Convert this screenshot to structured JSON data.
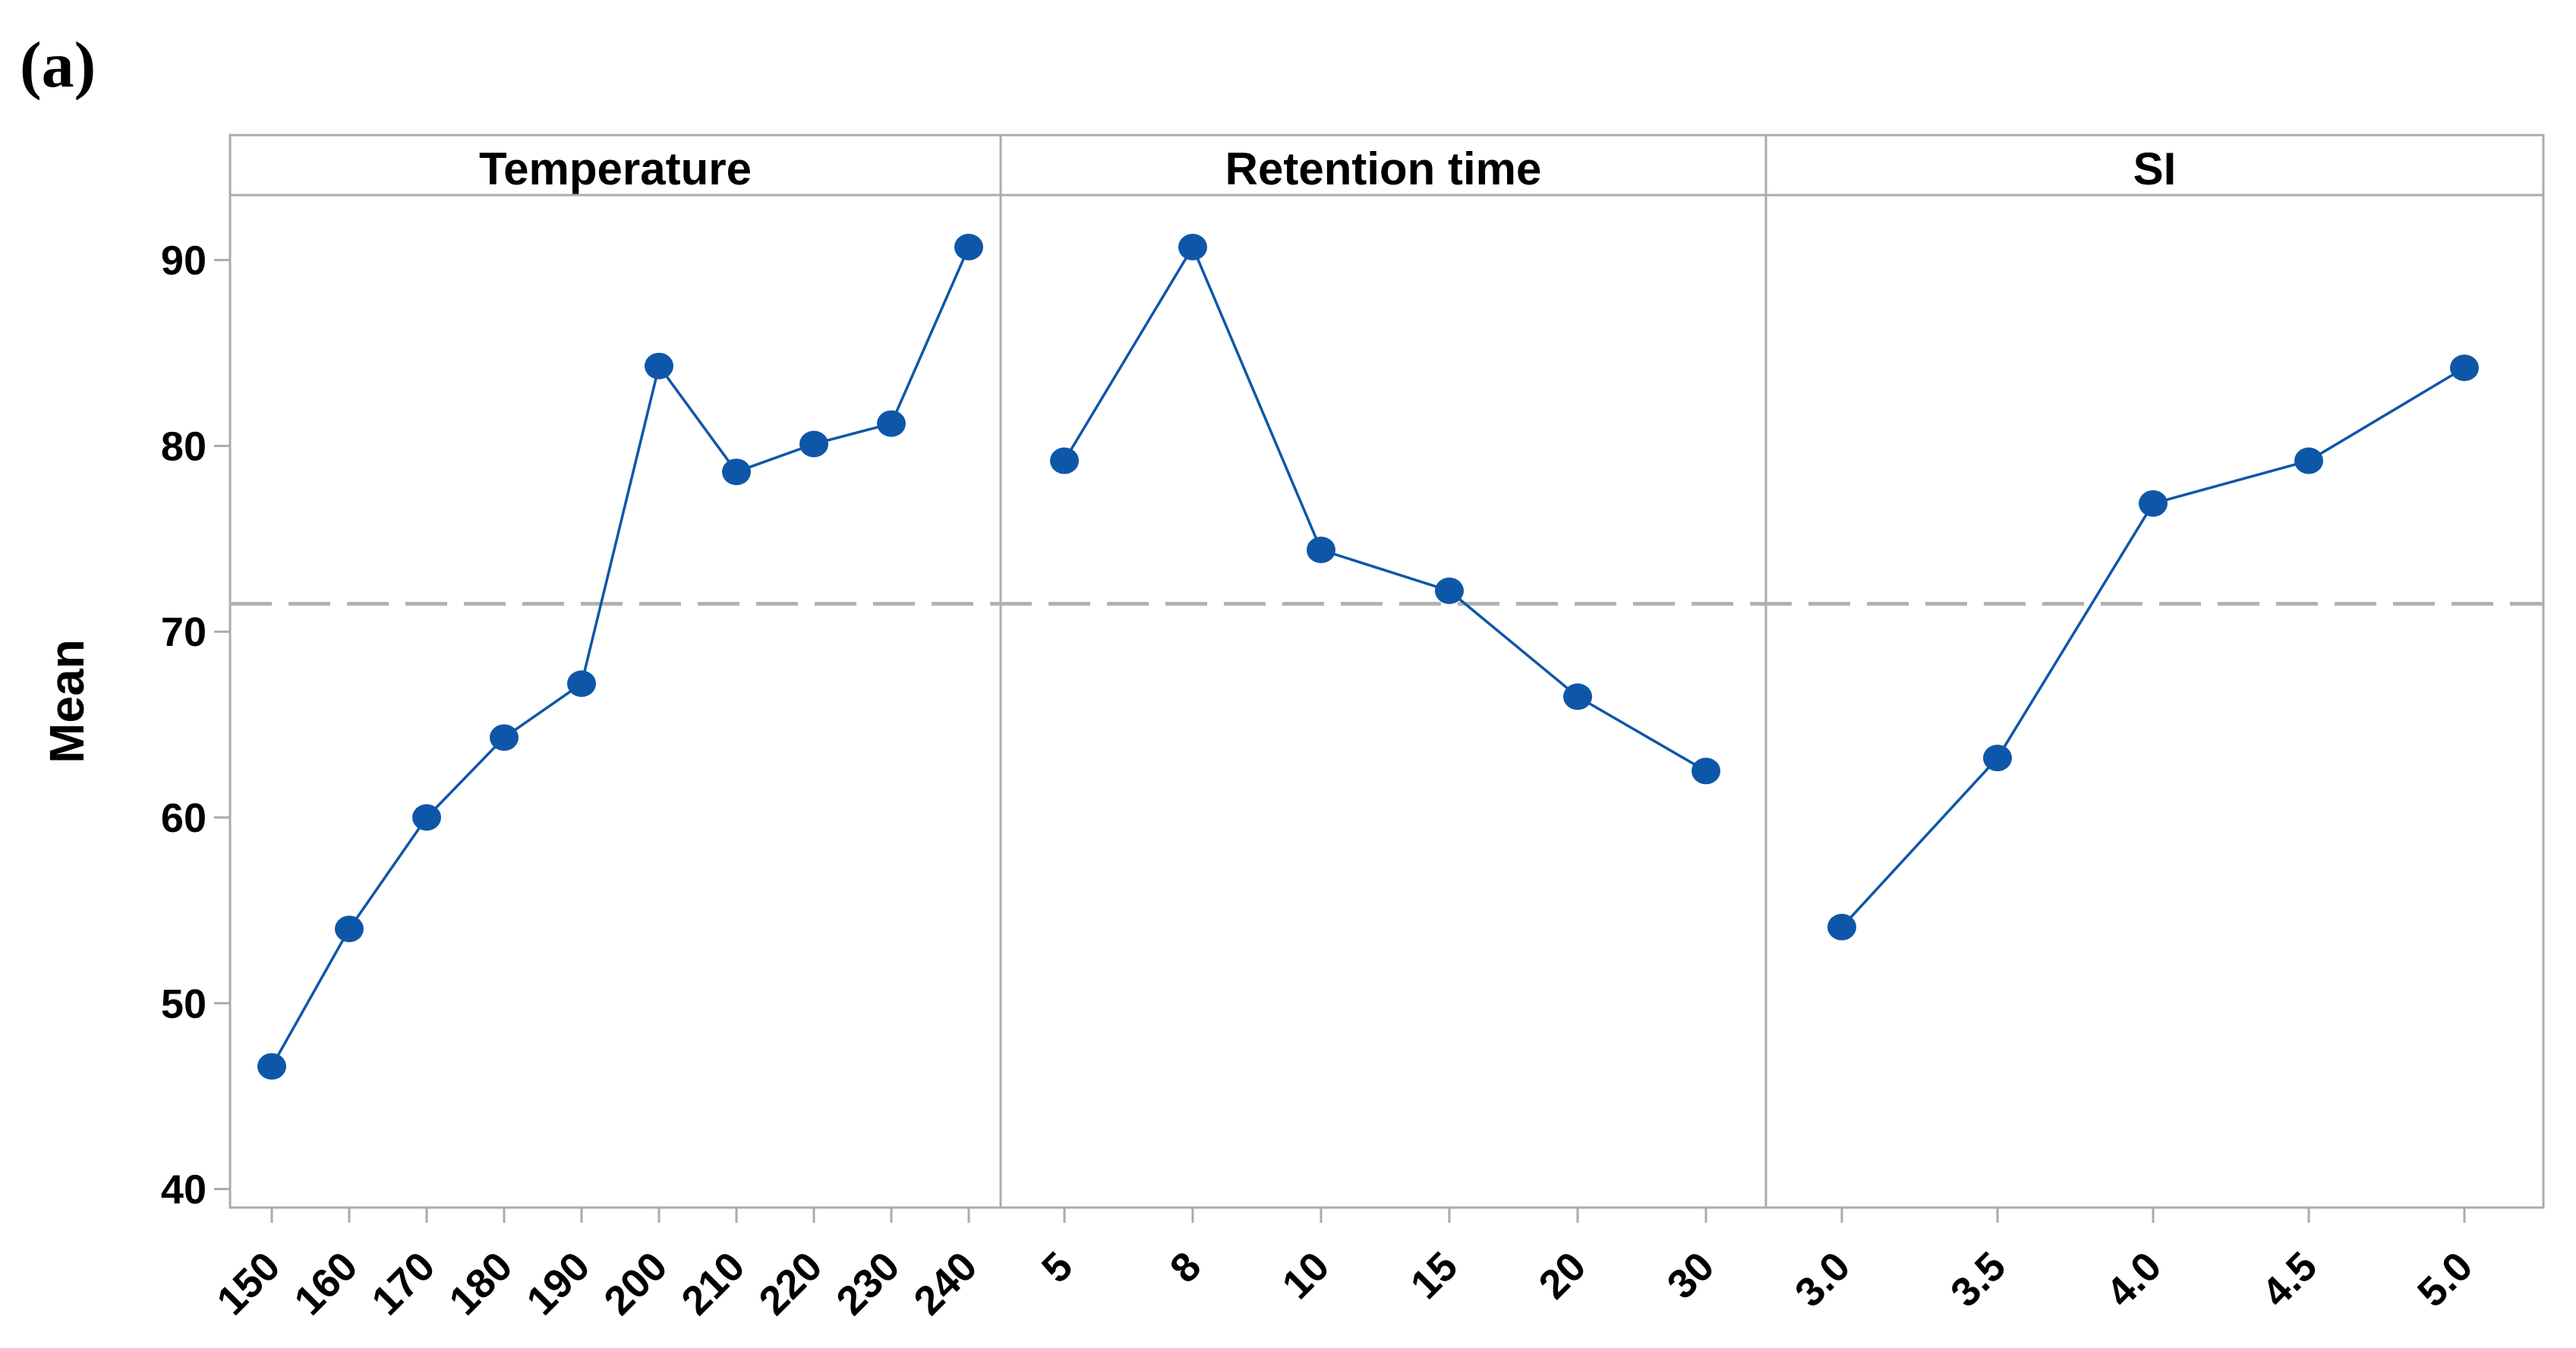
{
  "figure": {
    "label": "(a)"
  },
  "chart_data": {
    "type": "line",
    "title": "",
    "ylabel": "Mean",
    "ylim": [
      39,
      93.5
    ],
    "yticks": [
      40,
      50,
      60,
      70,
      80,
      90
    ],
    "reference_line_mean": 71.5,
    "grid": false,
    "legend": "none",
    "panels": [
      {
        "title": "Temperature",
        "categories": [
          "150",
          "160",
          "170",
          "180",
          "190",
          "200",
          "210",
          "220",
          "230",
          "240"
        ],
        "values": [
          46.6,
          54.0,
          60.0,
          64.3,
          67.2,
          84.3,
          78.6,
          80.1,
          81.2,
          90.7
        ]
      },
      {
        "title": "Retention time",
        "categories": [
          "5",
          "8",
          "10",
          "15",
          "20",
          "30"
        ],
        "values": [
          79.2,
          90.7,
          74.4,
          72.2,
          66.5,
          62.5
        ]
      },
      {
        "title": "SI",
        "categories": [
          "3.0",
          "3.5",
          "4.0",
          "4.5",
          "5.0"
        ],
        "values": [
          54.1,
          63.2,
          76.9,
          79.2,
          84.2
        ]
      }
    ]
  },
  "colors": {
    "series": "#0E57A8",
    "reference_line": "#B2B2B2",
    "frame": "#ABABAB",
    "text": "#000000",
    "background": "#FFFFFF"
  }
}
